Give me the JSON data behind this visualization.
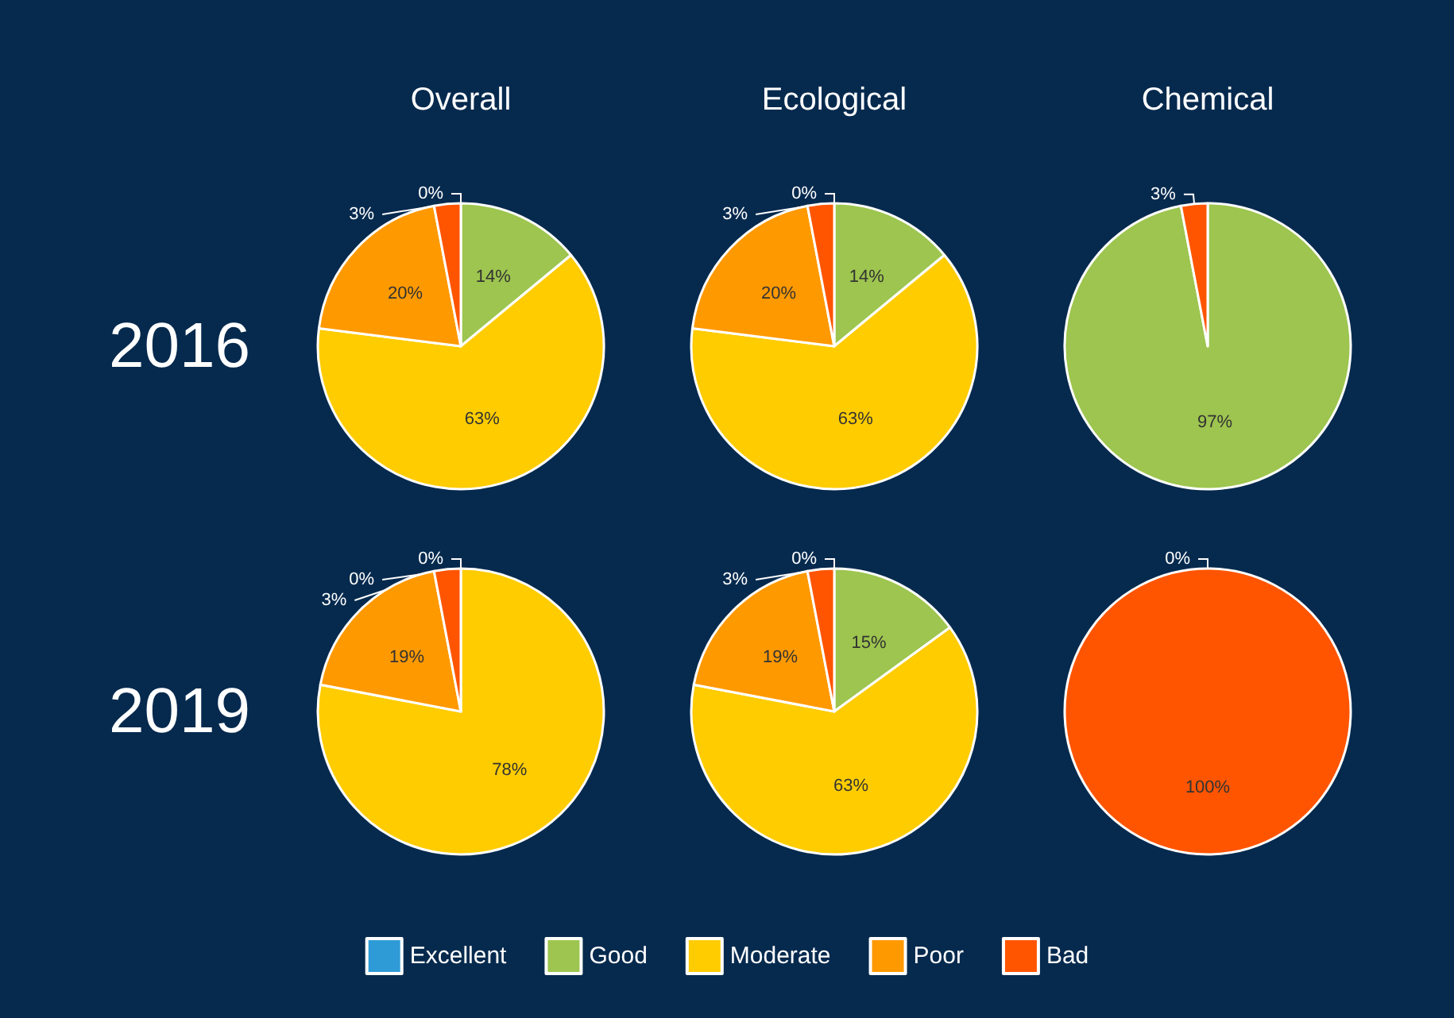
{
  "chart_data": [
    {
      "type": "pie",
      "title": "Overall",
      "annotations": [
        "2016"
      ],
      "categories": [
        null,
        null,
        null,
        null,
        null
      ],
      "values": [
        0,
        14,
        63,
        20,
        3
      ],
      "value_labels": [
        "0%",
        "14%",
        "63%",
        "20%",
        "3%"
      ],
      "colors": [
        "#2e9bd6",
        "#9dc54f",
        "#ffcc00",
        "#ff9900",
        "#ff5500"
      ]
    },
    {
      "type": "pie",
      "title": "Ecological",
      "categories": [
        null,
        null,
        null,
        null,
        null
      ],
      "values": [
        0,
        14,
        63,
        20,
        3
      ],
      "value_labels": [
        "0%",
        "14%",
        "63%",
        "20%",
        "3%"
      ],
      "colors": [
        "#2e9bd6",
        "#9dc54f",
        "#ffcc00",
        "#ff9900",
        "#ff5500"
      ]
    },
    {
      "type": "pie",
      "title": "Chemical",
      "categories": [
        null,
        null
      ],
      "values": [
        97,
        3
      ],
      "value_labels": [
        "97%",
        "3%"
      ],
      "colors": [
        "#9dc54f",
        "#ff5500"
      ]
    },
    {
      "type": "pie",
      "annotations": [
        "2019"
      ],
      "categories": [
        null,
        null,
        null,
        null,
        null
      ],
      "values": [
        0,
        0,
        78,
        19,
        3
      ],
      "value_labels": [
        "0%",
        "0%",
        "78%",
        "19%",
        "3%"
      ],
      "colors": [
        "#2e9bd6",
        "#9dc54f",
        "#ffcc00",
        "#ff9900",
        "#ff5500"
      ]
    },
    {
      "type": "pie",
      "legend": "bottom",
      "categories": [
        "Excellent",
        "Good",
        "Moderate",
        "Poor",
        "Bad"
      ],
      "values": [
        0,
        15,
        63,
        19,
        3
      ],
      "value_labels": [
        "0%",
        "15%",
        "63%",
        "19%",
        "3%"
      ],
      "colors": [
        "#2e9bd6",
        "#9dc54f",
        "#ffcc00",
        "#ff9900",
        "#ff5500"
      ]
    },
    {
      "type": "pie",
      "categories": [
        null,
        null
      ],
      "values": [
        0,
        100
      ],
      "value_labels": [
        "0%",
        "100%"
      ],
      "colors": [
        "#9dc54f",
        "#ff5500"
      ]
    }
  ]
}
